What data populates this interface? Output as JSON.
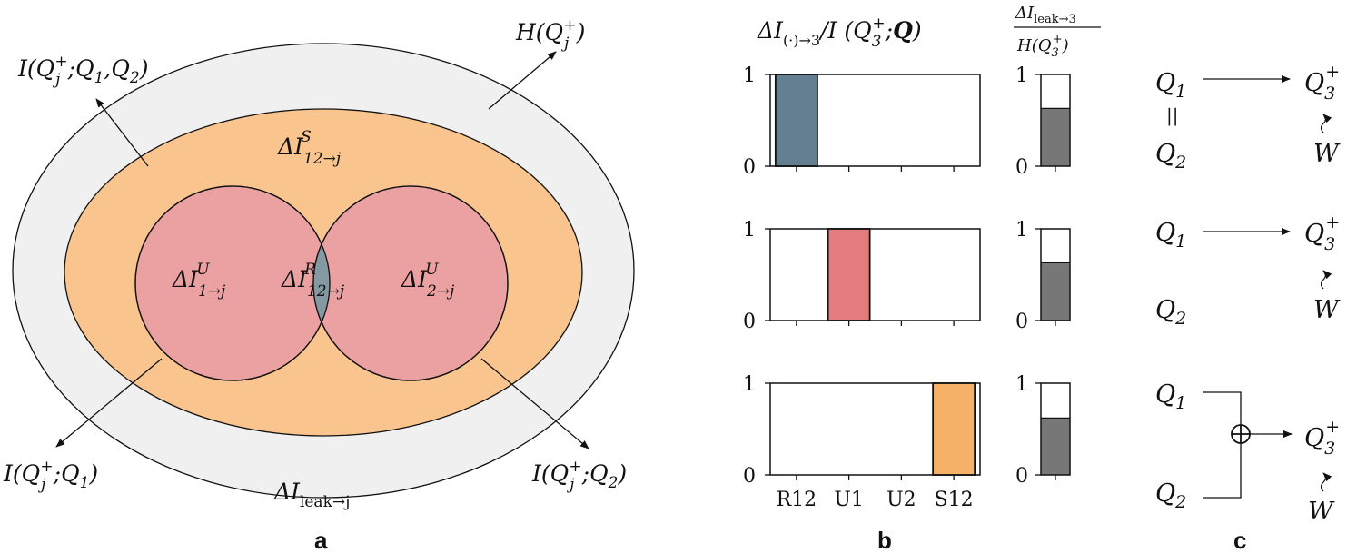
{
  "panel_labels": {
    "a": "a",
    "b": "b",
    "c": "c"
  },
  "venn": {
    "labels": {
      "entropy": "H(Q_j^+)",
      "mi_both": "I(Q_j^+;Q_1,Q_2)",
      "mi_q1": "I(Q_j^+;Q_1)",
      "mi_q2": "I(Q_j^+;Q_2)",
      "synergy": "ΔI^S_{12→j}",
      "unique1": "ΔI^U_{1→j}",
      "redundant": "ΔI^R_{12→j}",
      "unique2": "ΔI^U_{2→j}",
      "leak": "ΔI_leak→j"
    },
    "colors": {
      "outer": "#f0f0f0",
      "synergy": "#f9c48e",
      "unique": "#eba0a2",
      "redundant": "#8599a3"
    }
  },
  "chart_titles": {
    "main": "ΔI_(·)→3 / I(Q_3^+; Q)",
    "leak_numerator": "ΔI_leak→3",
    "leak_denominator": "H(Q_3^+)"
  },
  "chart_data": [
    {
      "type": "bar",
      "categories": [
        "R12",
        "U1",
        "U2",
        "S12"
      ],
      "values": [
        1,
        0,
        0,
        0
      ],
      "ylim": [
        0,
        1
      ],
      "yticks": [
        "0",
        "1"
      ],
      "color": "#647f91"
    },
    {
      "type": "bar",
      "categories": [
        "R12",
        "U1",
        "U2",
        "S12"
      ],
      "values": [
        0,
        1,
        0,
        0
      ],
      "ylim": [
        0,
        1
      ],
      "yticks": [
        "0",
        "1"
      ],
      "color": "#e47c7e"
    },
    {
      "type": "bar",
      "categories": [
        "R12",
        "U1",
        "U2",
        "S12"
      ],
      "values": [
        0,
        0,
        0,
        1
      ],
      "ylim": [
        0,
        1
      ],
      "yticks": [
        "0",
        "1"
      ],
      "color": "#f6b169"
    }
  ],
  "leak_bars": {
    "values": [
      0.63,
      0.63,
      0.62
    ],
    "ylim": [
      0,
      1
    ],
    "yticks": [
      "0",
      "1"
    ],
    "fill_color": "#777777"
  },
  "schematics": {
    "q1": "Q1",
    "q2": "Q2",
    "target": "Q3+",
    "noise": "W",
    "equal_sign": "||",
    "xor_symbol": "⊕"
  }
}
